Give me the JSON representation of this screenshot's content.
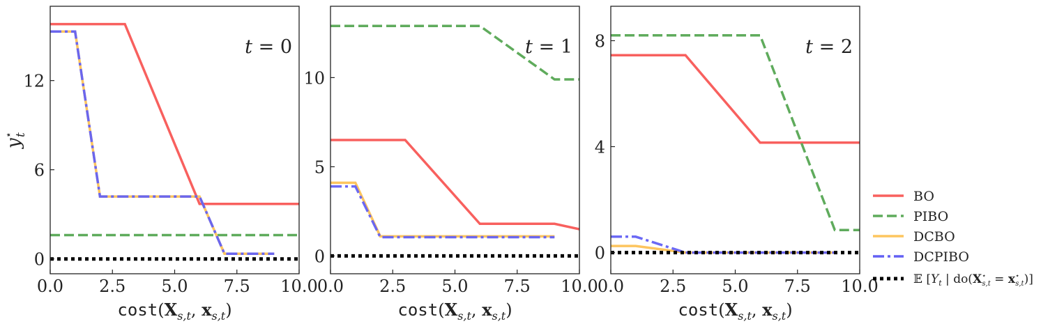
{
  "chart_data": [
    {
      "type": "line",
      "panel_label": "t = 0",
      "xlabel": "cost(X_{s,t}, x_{s,t})",
      "ylabel": "y*_t",
      "xlim": [
        0,
        10
      ],
      "ylim": [
        -1,
        17
      ],
      "xticks": [
        0.0,
        2.5,
        5.0,
        7.5,
        10.0
      ],
      "xtick_labels": [
        "0.0",
        "2.5",
        "5.0",
        "7.5",
        "10.0"
      ],
      "yticks": [
        0,
        6,
        12
      ],
      "ytick_labels": [
        "0",
        "6",
        "12"
      ],
      "grid": false,
      "series": [
        {
          "name": "BO",
          "x": [
            0,
            3,
            6,
            10
          ],
          "y": [
            15.8,
            15.8,
            3.7,
            3.7
          ]
        },
        {
          "name": "PIBO",
          "x": [
            0,
            10
          ],
          "y": [
            1.6,
            1.6
          ]
        },
        {
          "name": "DCBO",
          "x": [
            0,
            1,
            2,
            6,
            7,
            9
          ],
          "y": [
            15.3,
            15.3,
            4.2,
            4.2,
            0.35,
            0.35
          ]
        },
        {
          "name": "DCPIBO",
          "x": [
            0,
            1,
            2,
            6,
            7,
            9
          ],
          "y": [
            15.3,
            15.3,
            4.2,
            4.2,
            0.35,
            0.35
          ]
        },
        {
          "name": "E[Y_t | do(X*_{s,t} = x*_{s,t})]",
          "x": [
            0,
            10
          ],
          "y": [
            0,
            0
          ]
        }
      ]
    },
    {
      "type": "line",
      "panel_label": "t = 1",
      "xlabel": "cost(X_{s,t}, x_{s,t})",
      "ylabel": "",
      "xlim": [
        0,
        10
      ],
      "ylim": [
        -1,
        14
      ],
      "xticks": [
        0.0,
        2.5,
        5.0,
        7.5,
        10.0
      ],
      "xtick_labels": [
        "0.0",
        "2.5",
        "5.0",
        "7.5",
        "10.0"
      ],
      "yticks": [
        0,
        5,
        10
      ],
      "ytick_labels": [
        "0",
        "5",
        "10"
      ],
      "grid": false,
      "series": [
        {
          "name": "BO",
          "x": [
            0,
            3,
            6,
            9,
            10
          ],
          "y": [
            6.5,
            6.5,
            1.8,
            1.8,
            1.5
          ]
        },
        {
          "name": "PIBO",
          "x": [
            0,
            6,
            9,
            10
          ],
          "y": [
            12.9,
            12.9,
            9.9,
            9.9
          ]
        },
        {
          "name": "DCBO",
          "x": [
            0,
            1,
            2,
            9
          ],
          "y": [
            4.1,
            4.1,
            1.1,
            1.1
          ]
        },
        {
          "name": "DCPIBO",
          "x": [
            0,
            1,
            2,
            9
          ],
          "y": [
            3.9,
            3.9,
            1.05,
            1.05
          ]
        },
        {
          "name": "E[Y_t | do(X*_{s,t} = x*_{s,t})]",
          "x": [
            0,
            10
          ],
          "y": [
            0,
            0
          ]
        }
      ]
    },
    {
      "type": "line",
      "panel_label": "t = 2",
      "xlabel": "cost(X_{s,t}, x_{s,t})",
      "ylabel": "",
      "xlim": [
        0,
        10
      ],
      "ylim": [
        -0.8,
        9.3
      ],
      "xticks": [
        0.0,
        2.5,
        5.0,
        7.5,
        10.0
      ],
      "xtick_labels": [
        "0.0",
        "2.5",
        "5.0",
        "7.5",
        "10.0"
      ],
      "yticks": [
        0,
        4,
        8
      ],
      "ytick_labels": [
        "0",
        "4",
        "8"
      ],
      "grid": false,
      "series": [
        {
          "name": "BO",
          "x": [
            0,
            3,
            6,
            10
          ],
          "y": [
            7.45,
            7.45,
            4.15,
            4.15
          ]
        },
        {
          "name": "PIBO",
          "x": [
            0,
            6,
            9,
            10
          ],
          "y": [
            8.2,
            8.2,
            0.85,
            0.85
          ]
        },
        {
          "name": "DCBO",
          "x": [
            0,
            1,
            3,
            9
          ],
          "y": [
            0.25,
            0.25,
            0.0,
            0.0
          ]
        },
        {
          "name": "DCPIBO",
          "x": [
            0,
            1,
            3,
            9
          ],
          "y": [
            0.6,
            0.6,
            0.0,
            0.0
          ]
        },
        {
          "name": "E[Y_t | do(X*_{s,t} = x*_{s,t})]",
          "x": [
            0,
            10
          ],
          "y": [
            0,
            0
          ]
        }
      ]
    }
  ],
  "legend": {
    "placement": "right-bottom",
    "entries": [
      {
        "label": "BO",
        "color": "#f8605e",
        "style": "solid"
      },
      {
        "label": "PIBO",
        "color": "#5fab5c",
        "style": "dashed"
      },
      {
        "label": "DCBO",
        "color": "#fdc55f",
        "style": "solid"
      },
      {
        "label": "DCPIBO",
        "color": "#6361f4",
        "style": "dashdot"
      },
      {
        "label": "E[Y_t | do(X*_{s,t} = x*_{s,t})]",
        "color": "#000000",
        "style": "dotted"
      }
    ]
  },
  "colors": {
    "BO": "#f8605e",
    "PIBO": "#5fab5c",
    "DCBO": "#fdc55f",
    "DCPIBO": "#6361f4",
    "optimum": "#000000"
  }
}
